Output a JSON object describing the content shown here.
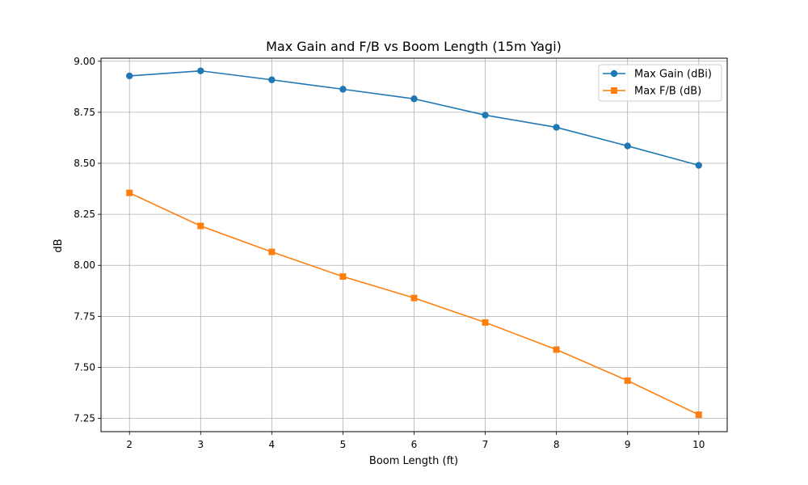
{
  "chart_data": {
    "type": "line",
    "title": "Max Gain and F/B vs Boom Length (15m Yagi)",
    "xlabel": "Boom Length (ft)",
    "ylabel": "dB",
    "x": [
      2,
      3,
      4,
      5,
      6,
      7,
      8,
      9,
      10
    ],
    "xlim": [
      1.6,
      10.4
    ],
    "ylim": [
      7.185,
      9.015
    ],
    "xticks": [
      2,
      3,
      4,
      5,
      6,
      7,
      8,
      9,
      10
    ],
    "yticks": [
      7.25,
      7.5,
      7.75,
      8.0,
      8.25,
      8.5,
      8.75,
      9.0
    ],
    "ytick_labels": [
      "7.25",
      "7.50",
      "7.75",
      "8.00",
      "8.25",
      "8.50",
      "8.75",
      "9.00"
    ],
    "grid": true,
    "legend_position": "top-right",
    "series": [
      {
        "name": "Max Gain (dBi)",
        "color": "#1f77b4",
        "marker": "circle",
        "values": [
          8.928,
          8.953,
          8.909,
          8.863,
          8.816,
          8.736,
          8.676,
          8.585,
          8.49
        ]
      },
      {
        "name": "Max F/B (dB)",
        "color": "#ff7f0e",
        "marker": "square",
        "values": [
          8.355,
          8.193,
          8.066,
          7.945,
          7.84,
          7.72,
          7.587,
          7.435,
          7.268
        ]
      }
    ]
  }
}
